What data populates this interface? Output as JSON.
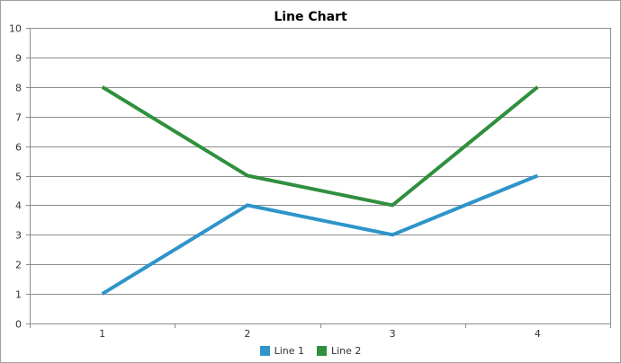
{
  "colors": {
    "line1": "#2e94c9",
    "line2": "#2f8f3d",
    "grid": "#8c8c8c",
    "axis": "#8c8c8c",
    "tick_text": "#333333"
  },
  "chart_data": {
    "type": "line",
    "title": "Line Chart",
    "xlabel": "",
    "ylabel": "",
    "x": [
      "1",
      "2",
      "3",
      "4"
    ],
    "ylim": [
      0,
      10
    ],
    "y_ticks": [
      "0",
      "1",
      "2",
      "3",
      "4",
      "5",
      "6",
      "7",
      "8",
      "9",
      "10"
    ],
    "grid": true,
    "legend": "bottom",
    "series": [
      {
        "name": "Line 1",
        "values": [
          1,
          4,
          3,
          5
        ]
      },
      {
        "name": "Line 2",
        "values": [
          8,
          5,
          4,
          8
        ]
      }
    ]
  }
}
